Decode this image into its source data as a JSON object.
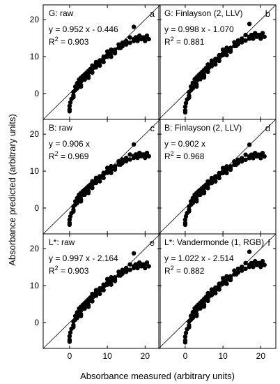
{
  "chart_data": {
    "type": "scatter",
    "xlabel": "Absorbance measured (arbitrary units)",
    "ylabel": "Absorbance predicted (arbitrary units)",
    "xlim": [
      -7,
      24
    ],
    "ylim": [
      -7,
      24
    ],
    "xticks": [
      0,
      10,
      20
    ],
    "yticks": [
      0,
      10,
      20
    ],
    "grid": false,
    "panels": [
      {
        "id": "a",
        "letter": "a",
        "title": "G: raw",
        "equation": "y = 0.952 x - 0.446",
        "r2_prefix": "R",
        "r2_sup": "2",
        "r2_value": " = 0.903",
        "slope": 0.952,
        "intercept": -0.446
      },
      {
        "id": "b",
        "letter": "b",
        "title": "G: Finlayson (2, LLV)",
        "equation": "y = 0.998 x - 1.070",
        "r2_prefix": "R",
        "r2_sup": "2",
        "r2_value": " = 0.881",
        "slope": 0.998,
        "intercept": -1.07
      },
      {
        "id": "c",
        "letter": "c",
        "title": "B: raw",
        "equation": "y = 0.906 x",
        "r2_prefix": "R",
        "r2_sup": "2",
        "r2_value": " = 0.969",
        "slope": 0.906,
        "intercept": 0
      },
      {
        "id": "d",
        "letter": "d",
        "title": "B: Finlayson (2, LLV)",
        "equation": "y = 0.902 x",
        "r2_prefix": "R",
        "r2_sup": "2",
        "r2_value": " = 0.968",
        "slope": 0.902,
        "intercept": 0
      },
      {
        "id": "e",
        "letter": "e",
        "title": "L*: raw",
        "equation": "y = 0.997 x - 2.164",
        "r2_prefix": "R",
        "r2_sup": "2",
        "r2_value": " = 0.903",
        "slope": 0.997,
        "intercept": -2.164
      },
      {
        "id": "f",
        "letter": "f",
        "title": "L*: Vandermonde (1, RGB)",
        "equation": "y = 1.022 x - 2.514",
        "r2_prefix": "R",
        "r2_sup": "2",
        "r2_value": " = 0.882",
        "slope": 1.022,
        "intercept": -2.514
      }
    ],
    "points": [
      [
        0,
        -3.5
      ],
      [
        0,
        -4.5
      ],
      [
        0,
        -5
      ],
      [
        0.2,
        -2.5
      ],
      [
        0.5,
        -1.5
      ],
      [
        1,
        -0.5
      ],
      [
        1,
        0.5
      ],
      [
        1.5,
        1
      ],
      [
        1.5,
        2
      ],
      [
        2,
        2.5
      ],
      [
        2,
        3
      ],
      [
        2.5,
        3
      ],
      [
        2.5,
        4
      ],
      [
        3,
        3.5
      ],
      [
        3,
        4.5
      ],
      [
        3.5,
        4
      ],
      [
        3.5,
        5
      ],
      [
        4,
        5
      ],
      [
        4,
        5.5
      ],
      [
        4.5,
        5.5
      ],
      [
        4.5,
        6
      ],
      [
        5,
        6
      ],
      [
        5,
        6.5
      ],
      [
        5.5,
        6.5
      ],
      [
        5.5,
        7
      ],
      [
        6,
        7
      ],
      [
        6,
        7.5
      ],
      [
        6.5,
        7.5
      ],
      [
        7,
        8
      ],
      [
        7,
        8.5
      ],
      [
        7.5,
        8.5
      ],
      [
        8,
        9
      ],
      [
        8,
        9.5
      ],
      [
        8.5,
        9.5
      ],
      [
        9,
        10
      ],
      [
        9,
        10.5
      ],
      [
        9.5,
        10.5
      ],
      [
        10,
        10.5
      ],
      [
        10,
        11
      ],
      [
        10.5,
        11
      ],
      [
        11,
        11.5
      ],
      [
        11.5,
        12
      ],
      [
        12,
        12
      ],
      [
        12,
        12.5
      ],
      [
        13,
        13
      ],
      [
        13.5,
        13
      ],
      [
        14,
        13.5
      ],
      [
        15,
        14
      ],
      [
        16,
        14.5
      ],
      [
        17,
        15
      ],
      [
        17,
        15.5
      ],
      [
        17.5,
        16
      ],
      [
        18,
        16
      ],
      [
        18,
        15
      ],
      [
        18.5,
        16.5
      ],
      [
        19,
        15.5
      ],
      [
        19,
        16
      ],
      [
        19.5,
        16
      ],
      [
        20,
        16
      ],
      [
        20,
        15
      ],
      [
        20.5,
        16.5
      ],
      [
        21,
        15.5
      ],
      [
        17,
        19
      ],
      [
        3,
        2.5
      ],
      [
        5,
        5
      ],
      [
        6,
        6
      ],
      [
        7,
        7.5
      ],
      [
        9,
        9
      ],
      [
        11,
        10.5
      ],
      [
        2,
        1.5
      ],
      [
        4,
        4
      ],
      [
        8,
        8
      ],
      [
        12,
        11.5
      ],
      [
        14,
        14.5
      ],
      [
        16,
        16
      ],
      [
        1,
        -1
      ],
      [
        3,
        2
      ],
      [
        5,
        4.5
      ],
      [
        6,
        8
      ],
      [
        7,
        9
      ],
      [
        10,
        12
      ],
      [
        11,
        12.5
      ],
      [
        13,
        14
      ],
      [
        15,
        15
      ]
    ]
  }
}
